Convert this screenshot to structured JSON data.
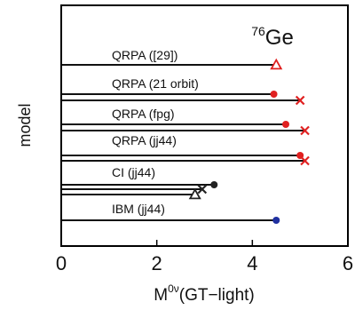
{
  "chart_data": {
    "type": "line",
    "title": "",
    "nucleus_label": {
      "superscript": "76",
      "text": "Ge"
    },
    "xlabel": {
      "base": "M",
      "superscript": "0ν",
      "suffix": "(GT−light)"
    },
    "ylabel": "model",
    "xlim": [
      0,
      6
    ],
    "xticks": [
      0,
      2,
      4,
      6
    ],
    "grid": false,
    "groups": [
      {
        "label": "QRPA ([29])",
        "lines": [
          {
            "value": 4.5,
            "marker": "triangle-open",
            "color": "#e02020"
          }
        ]
      },
      {
        "label": "QRPA (21 orbit)",
        "lines": [
          {
            "value": 4.45,
            "marker": "circle",
            "color": "#e02020"
          },
          {
            "value": 5.0,
            "marker": "cross",
            "color": "#e02020"
          }
        ]
      },
      {
        "label": "QRPA (fpg)",
        "lines": [
          {
            "value": 4.7,
            "marker": "circle",
            "color": "#e02020"
          },
          {
            "value": 5.1,
            "marker": "cross",
            "color": "#e02020"
          }
        ]
      },
      {
        "label": "QRPA (jj44)",
        "lines": [
          {
            "value": 5.0,
            "marker": "circle",
            "color": "#e02020"
          },
          {
            "value": 5.1,
            "marker": "cross",
            "color": "#e02020"
          }
        ]
      },
      {
        "label": "CI (jj44)",
        "lines": [
          {
            "value": 3.2,
            "marker": "circle",
            "color": "#222222"
          },
          {
            "value": 2.95,
            "marker": "cross",
            "color": "#222222"
          },
          {
            "value": 2.8,
            "marker": "triangle-open",
            "color": "#222222"
          }
        ]
      },
      {
        "label": "IBM (jj44)",
        "lines": [
          {
            "value": 4.5,
            "marker": "circle",
            "color": "#2030a0"
          }
        ]
      }
    ]
  }
}
